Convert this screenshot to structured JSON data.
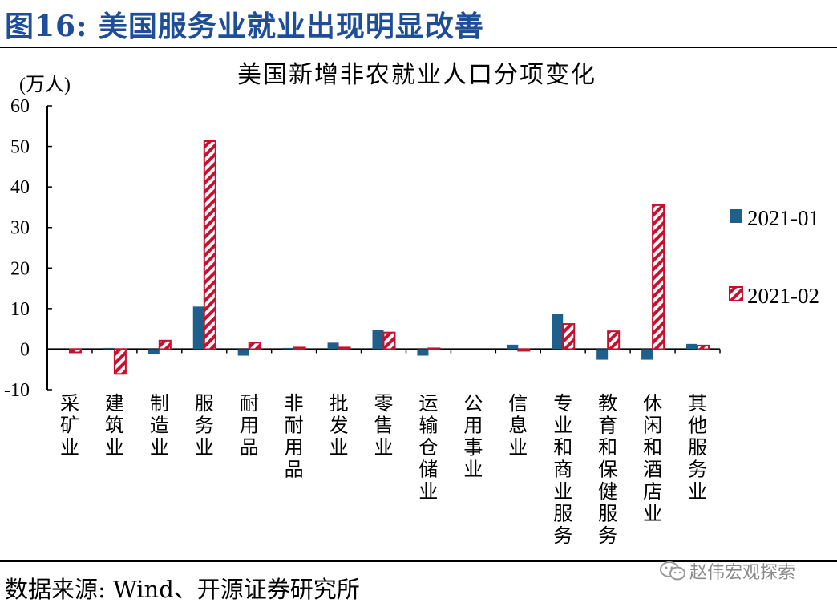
{
  "figure": {
    "title": "图16:  美国服务业就业出现明显改善",
    "source": "数据来源:  Wind、开源证券研究所",
    "watermark": "赵伟宏观探索"
  },
  "colors": {
    "title": "#1f4e99",
    "series_2021_01": "#1f5f8b",
    "series_2021_02": "#c8102e"
  },
  "chart_data": {
    "type": "bar",
    "title": "美国新增非农就业人口分项变化",
    "ylabel": "(万人)",
    "ylim": [
      -10,
      60
    ],
    "yticks": [
      60,
      50,
      40,
      30,
      20,
      10,
      0,
      -10
    ],
    "grid": false,
    "legend_position": "right",
    "categories": [
      "采矿业",
      "建筑业",
      "制造业",
      "服务业",
      "耐用品",
      "非耐用品",
      "批发业",
      "零售业",
      "运输仓储业",
      "公用事业",
      "信息业",
      "专业和商业服务",
      "教育和保健服务",
      "休闲和酒店业",
      "其他服务业"
    ],
    "series": [
      {
        "name": "2021-01",
        "style": "solid",
        "values": [
          0,
          0.3,
          -1.3,
          10.5,
          -1.6,
          0.3,
          1.6,
          4.8,
          -1.6,
          0,
          1.1,
          8.7,
          -2.6,
          -2.6,
          1.3
        ]
      },
      {
        "name": "2021-02",
        "style": "hatched",
        "values": [
          -0.8,
          -6.1,
          2.1,
          51.3,
          1.6,
          0.4,
          0.4,
          4.1,
          0.2,
          0,
          -0.4,
          6.2,
          4.4,
          35.5,
          0.9
        ]
      }
    ]
  }
}
